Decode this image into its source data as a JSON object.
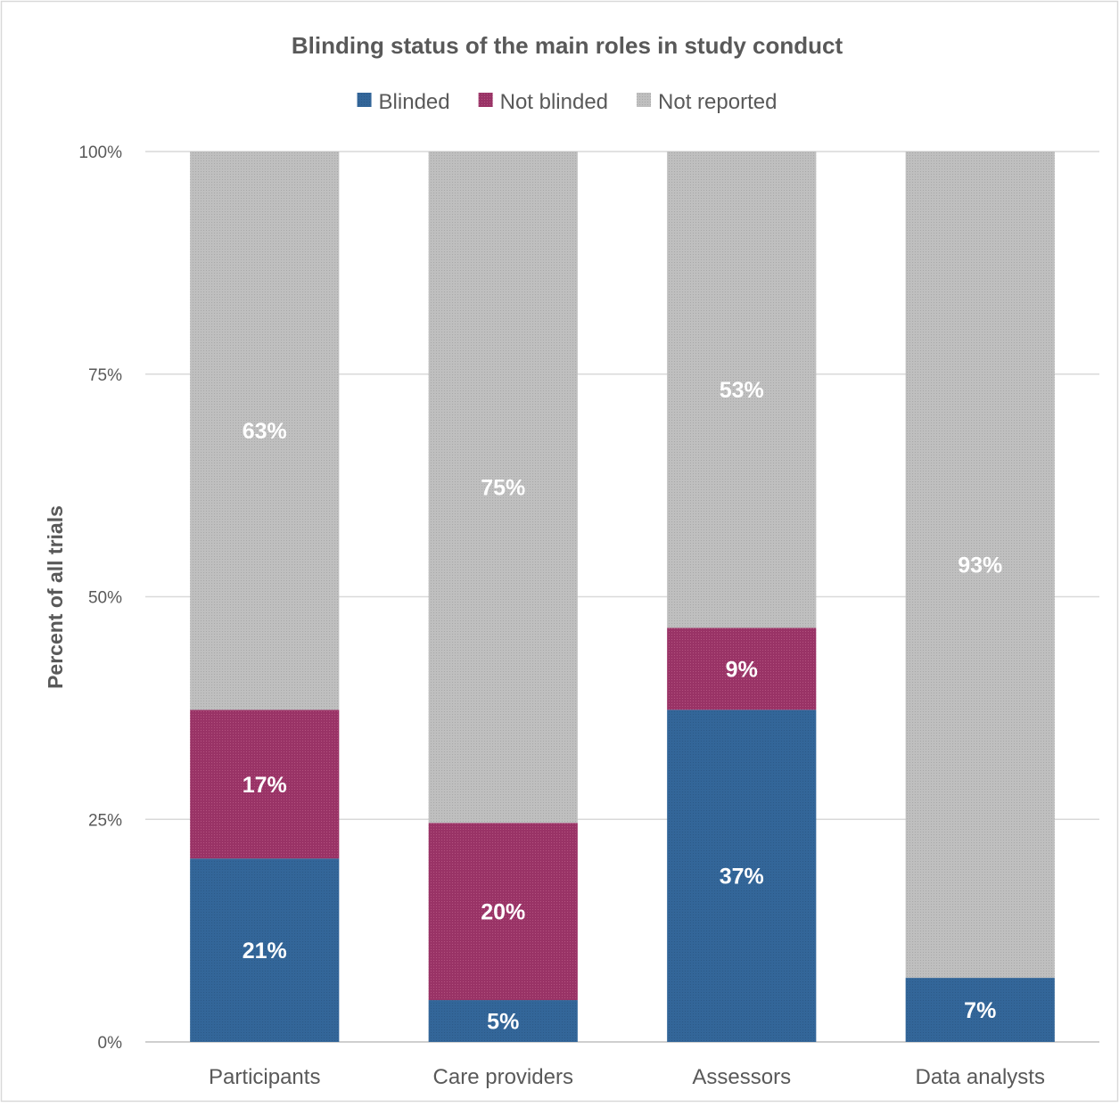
{
  "chart_data": {
    "type": "bar",
    "stacked": true,
    "title": "Blinding status of the main roles in study conduct",
    "ylabel": "Percent of all trials",
    "xlabel": "",
    "ylim": [
      0,
      100
    ],
    "y_ticks": [
      0,
      25,
      50,
      75,
      100
    ],
    "y_tick_labels": [
      "0%",
      "25%",
      "50%",
      "75%",
      "100%"
    ],
    "categories": [
      "Participants",
      "Care providers",
      "Assessors",
      "Data analysts"
    ],
    "series": [
      {
        "name": "Blinded",
        "color": "#336699",
        "values": [
          20.6,
          4.7,
          37.3,
          7.2
        ],
        "labels": [
          "21%",
          "5%",
          "37%",
          "7%"
        ]
      },
      {
        "name": "Not blinded",
        "color": "#993366",
        "values": [
          16.7,
          19.9,
          9.2,
          0
        ],
        "labels": [
          "17%",
          "20%",
          "9%",
          ""
        ]
      },
      {
        "name": "Not reported",
        "color": "#bfbfbf",
        "values": [
          62.7,
          75.4,
          53.5,
          92.8
        ],
        "labels": [
          "63%",
          "75%",
          "53%",
          "93%"
        ]
      }
    ],
    "grid": true,
    "legend_position": "top",
    "bar_texture": "dotted"
  }
}
